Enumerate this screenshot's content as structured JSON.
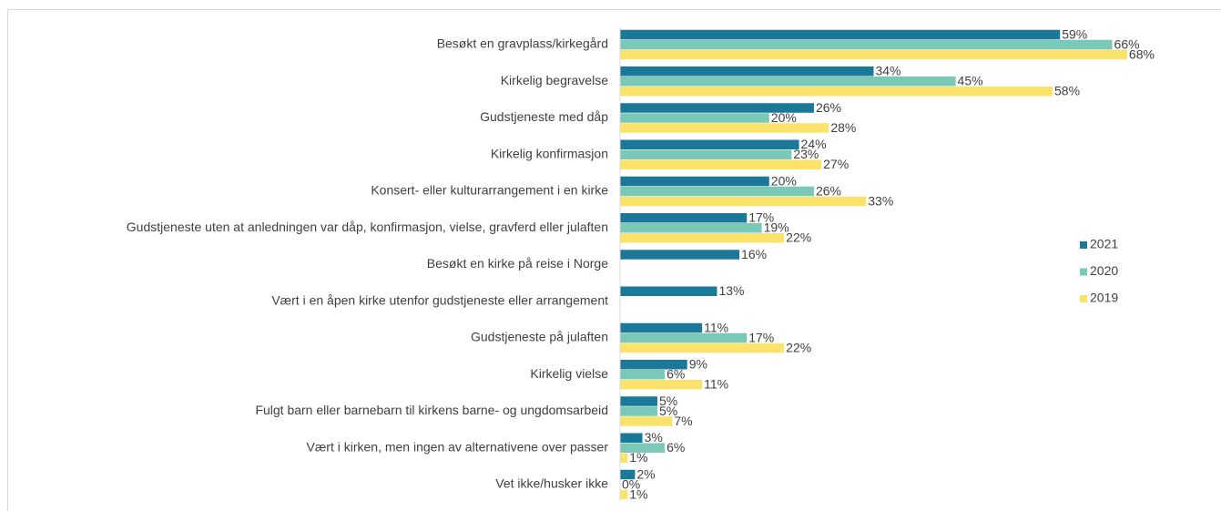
{
  "chart_data": {
    "type": "bar",
    "orientation": "horizontal",
    "categories": [
      "Besøkt en gravplass/kirkegård",
      "Kirkelig begravelse",
      "Gudstjeneste med dåp",
      "Kirkelig konfirmasjon",
      "Konsert- eller kulturarrangement i en kirke",
      "Gudstjeneste uten at anledningen var dåp, konfirmasjon, vielse, gravferd eller julaften",
      "Besøkt en kirke på reise i Norge",
      "Vært i en åpen kirke utenfor gudstjeneste eller arrangement",
      "Gudstjeneste på julaften",
      "Kirkelig vielse",
      "Fulgt barn eller barnebarn til kirkens barne- og ungdomsarbeid",
      "Vært i kirken, men ingen av alternativene over passer",
      "Vet ikke/husker ikke"
    ],
    "series": [
      {
        "name": "2021",
        "color": "#1b7898",
        "values": [
          59,
          34,
          26,
          24,
          20,
          17,
          16,
          13,
          11,
          9,
          5,
          3,
          2
        ],
        "value_labels": [
          "59%",
          "34%",
          "26%",
          "24%",
          "20%",
          "17%",
          "16%",
          "13%",
          "11%",
          "9%",
          "5%",
          "3%",
          "2%"
        ]
      },
      {
        "name": "2020",
        "color": "#7ac8b8",
        "values": [
          66,
          45,
          20,
          23,
          26,
          19,
          null,
          null,
          17,
          6,
          5,
          6,
          0
        ],
        "value_labels": [
          "66%",
          "45%",
          "20%",
          "23%",
          "26%",
          "19%",
          null,
          null,
          "17%",
          "6%",
          "5%",
          "6%",
          "0%"
        ]
      },
      {
        "name": "2019",
        "color": "#fbe36b",
        "values": [
          68,
          58,
          28,
          27,
          33,
          22,
          null,
          null,
          22,
          11,
          7,
          1,
          1
        ],
        "value_labels": [
          "68%",
          "58%",
          "28%",
          "27%",
          "33%",
          "22%",
          null,
          null,
          "22%",
          "11%",
          "7%",
          "1%",
          "1%"
        ]
      }
    ],
    "legend": "right"
  }
}
